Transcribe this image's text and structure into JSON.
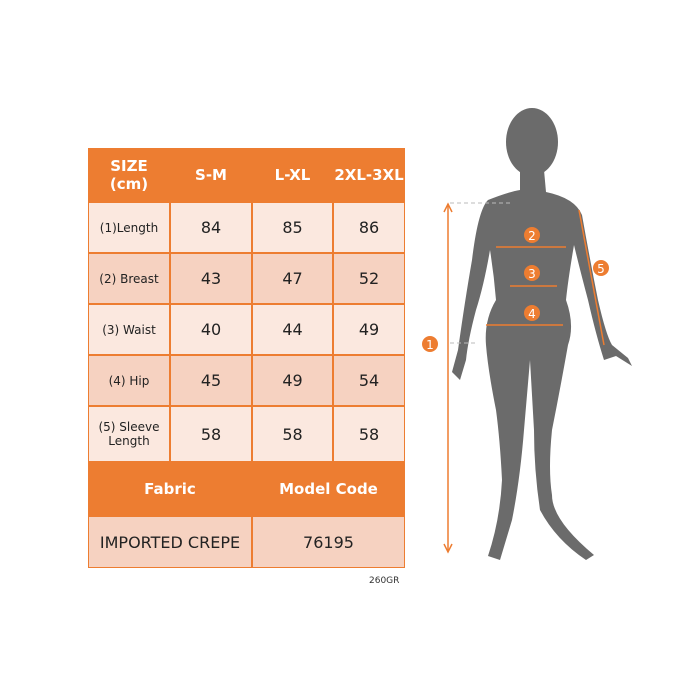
{
  "table": {
    "header": [
      "SIZE\n(cm)",
      "S-M",
      "L-XL",
      "2XL-3XL"
    ],
    "header_line1": "SIZE",
    "header_line2": "(cm)",
    "rows": [
      {
        "label": "(1)Length",
        "values": [
          "84",
          "85",
          "86"
        ]
      },
      {
        "label": "(2) Breast",
        "values": [
          "43",
          "47",
          "52"
        ]
      },
      {
        "label": "(3) Waist",
        "values": [
          "40",
          "44",
          "49"
        ]
      },
      {
        "label": "(4) Hip",
        "values": [
          "45",
          "49",
          "54"
        ]
      },
      {
        "label_line1": "(5) Sleeve",
        "label_line2": "Length",
        "values": [
          "58",
          "58",
          "58"
        ]
      }
    ],
    "footer_headers": [
      "Fabric",
      "Model Code"
    ],
    "footer_values": [
      "IMPORTED CREPE",
      "76195"
    ]
  },
  "product_code": "260GR",
  "figure": {
    "markers": [
      "1",
      "2",
      "3",
      "4",
      "5"
    ],
    "accent_color": "#ed7d31",
    "silhouette_color": "#6b6b6b"
  }
}
